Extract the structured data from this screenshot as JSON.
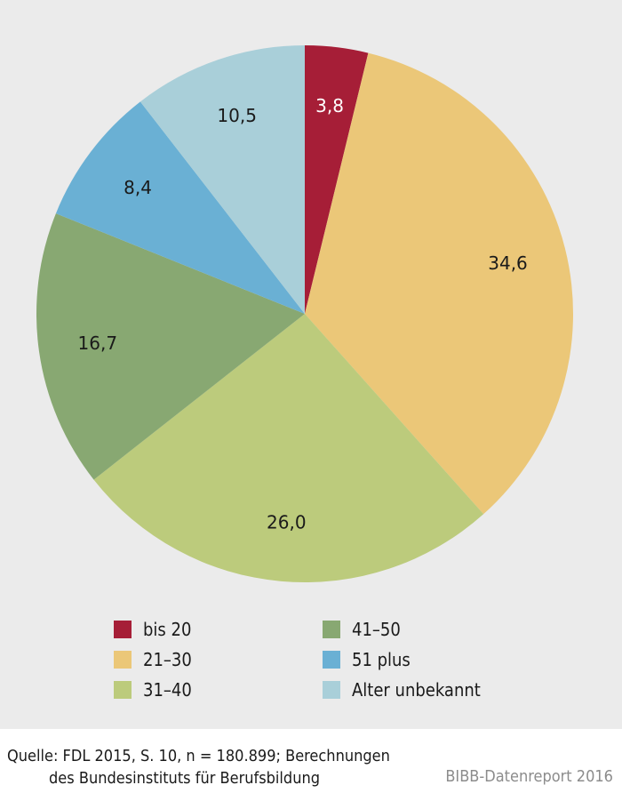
{
  "chart_data": {
    "type": "pie",
    "title": "",
    "slices": [
      {
        "label": "bis 20",
        "value": 3.8,
        "display": "3,8",
        "color": "#a61e37",
        "label_color": "#ffffff"
      },
      {
        "label": "21–30",
        "value": 34.6,
        "display": "34,6",
        "color": "#ebc778",
        "label_color": "#1a1a1a"
      },
      {
        "label": "31–40",
        "value": 26.0,
        "display": "26,0",
        "color": "#bccb7c",
        "label_color": "#1a1a1a"
      },
      {
        "label": "41–50",
        "value": 16.7,
        "display": "16,7",
        "color": "#88a872",
        "label_color": "#1a1a1a"
      },
      {
        "label": "51 plus",
        "value": 8.4,
        "display": "8,4",
        "color": "#6ab0d4",
        "label_color": "#1a1a1a"
      },
      {
        "label": "Alter unbekannt",
        "value": 10.5,
        "display": "10,5",
        "color": "#a9cfd9",
        "label_color": "#1a1a1a"
      }
    ],
    "start_angle_deg": 0,
    "direction": "clockwise",
    "legend_position": "bottom"
  },
  "legend": [
    {
      "label": "bis 20",
      "color": "#a61e37"
    },
    {
      "label": "41–50",
      "color": "#88a872"
    },
    {
      "label": "21–30",
      "color": "#ebc778"
    },
    {
      "label": "51 plus",
      "color": "#6ab0d4"
    },
    {
      "label": "31–40",
      "color": "#bccb7c"
    },
    {
      "label": "Alter unbekannt",
      "color": "#a9cfd9"
    }
  ],
  "source": {
    "line1": "Quelle: FDL 2015, S. 10, n = 180.899; Berechnungen",
    "line2": "des Bundesinstituts für Berufsbildung"
  },
  "credit": "BIBB-Datenreport 2016"
}
